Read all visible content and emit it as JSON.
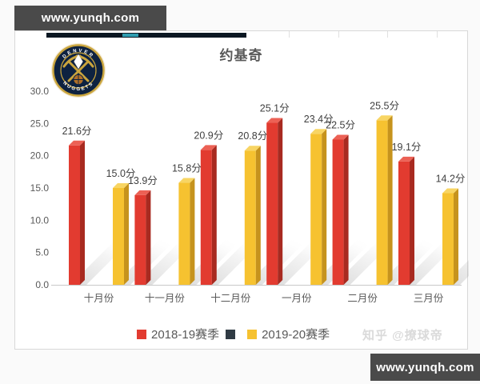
{
  "watermarks": {
    "top_left": "www.yunqh.com",
    "bottom_right": "www.yunqh.com",
    "attribution": "知乎 @撩球帝"
  },
  "logo": {
    "team": "Denver Nuggets",
    "text_top": "DENVER",
    "text_bottom": "NUGGETS"
  },
  "chart_data": {
    "type": "bar",
    "title": "约基奇",
    "categories": [
      "十月份",
      "十一月份",
      "十二月份",
      "一月份",
      "二月份",
      "三月份"
    ],
    "series": [
      {
        "name": "2018-19赛季",
        "values": [
          21.6,
          13.9,
          20.9,
          25.1,
          22.5,
          19.1
        ],
        "labels": [
          "21.6分",
          "13.9分",
          "20.9分",
          "25.1分",
          "22.5分",
          "19.1分"
        ],
        "color": "#e23b30",
        "color_side": "#a82a20",
        "color_top": "#ec6155"
      },
      {
        "name": "2019-20赛季",
        "values": [
          15.0,
          15.8,
          20.8,
          23.4,
          25.5,
          14.2
        ],
        "labels": [
          "15.0分",
          "15.8分",
          "20.8分",
          "23.4分",
          "25.5分",
          "14.2分"
        ],
        "color": "#f6c230",
        "color_side": "#c6931d",
        "color_top": "#f8d563"
      }
    ],
    "legend": [
      {
        "label": "2018-19赛季",
        "color": "#e23b30"
      },
      {
        "label": "",
        "color": "#303b44"
      },
      {
        "label": "2019-20赛季",
        "color": "#f6c230"
      }
    ],
    "value_suffix": "分",
    "y_ticks": [
      0,
      5,
      10,
      15,
      20,
      25,
      30
    ],
    "y_tick_labels": [
      "0.0",
      "5.0",
      "10.0",
      "15.0",
      "20.0",
      "25.0",
      "30.0"
    ],
    "ylim": [
      0,
      30
    ],
    "xlabel": "",
    "ylabel": "",
    "grid": false,
    "legend_position": "bottom",
    "style": "3d-bars-with-diagonal-shadows",
    "axis_text_color": "#595959",
    "label_text_color": "#3f3f3f",
    "baseline_color": "#c9c9c9"
  }
}
